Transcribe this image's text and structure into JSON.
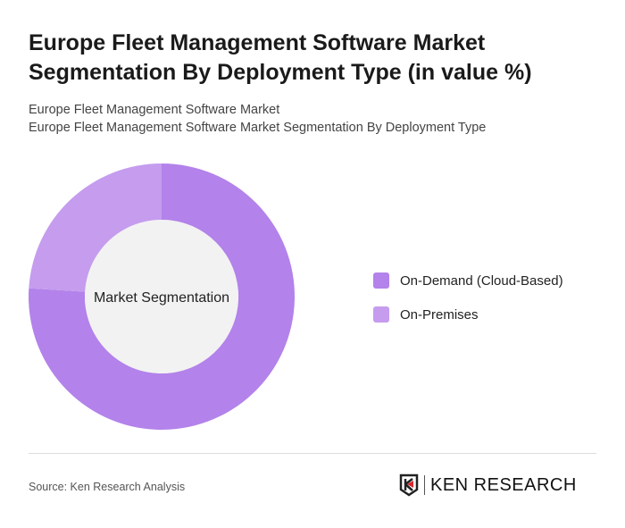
{
  "title": "Europe Fleet Management Software Market Segmentation By Deployment Type (in value %)",
  "subtitle_1": "Europe Fleet Management Software Market",
  "subtitle_2": "Europe Fleet Management Software Market Segmentation By Deployment Type",
  "source": "Source: Ken Research Analysis",
  "logo_text": "KEN RESEARCH",
  "chart_data": {
    "type": "pie",
    "donut": true,
    "center_label": "Market Segmentation",
    "categories": [
      "On-Demand (Cloud-Based)",
      "On-Premises"
    ],
    "values": [
      76,
      24
    ],
    "colors": [
      "#b382ea",
      "#c59cee"
    ],
    "legend_position": "right"
  }
}
